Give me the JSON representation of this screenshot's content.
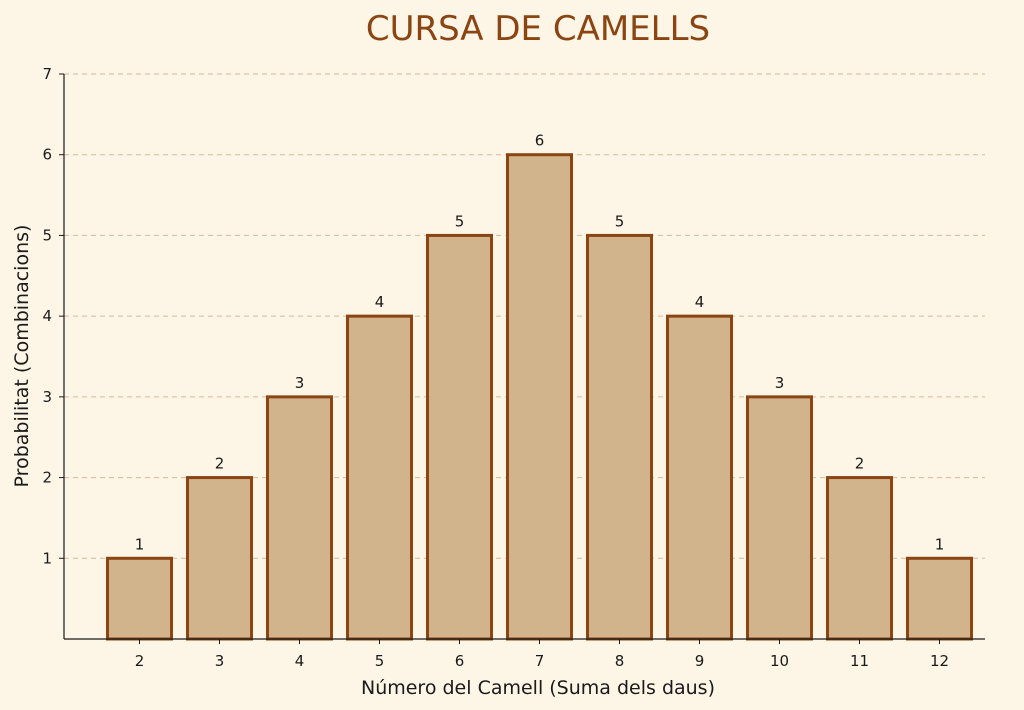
{
  "chart_data": {
    "type": "bar",
    "title": "CURSA DE CAMELLS",
    "xlabel": "Número del Camell (Suma dels daus)",
    "ylabel": "Probabilitat (Combinacions)",
    "categories": [
      "2",
      "3",
      "4",
      "5",
      "6",
      "7",
      "8",
      "9",
      "10",
      "11",
      "12"
    ],
    "values": [
      1,
      2,
      3,
      4,
      5,
      6,
      5,
      4,
      3,
      2,
      1
    ],
    "ylim": [
      0,
      7
    ],
    "yticks": [
      1,
      2,
      3,
      4,
      5,
      6,
      7
    ],
    "grid": "horizontal-dashed",
    "colors": {
      "background": "#fdf5e6",
      "bar_fill": "#d2b48c",
      "bar_edge": "#8b4513",
      "title": "#8b4513",
      "grid": "#d9b99b",
      "axis": "#1a1a1a"
    }
  }
}
